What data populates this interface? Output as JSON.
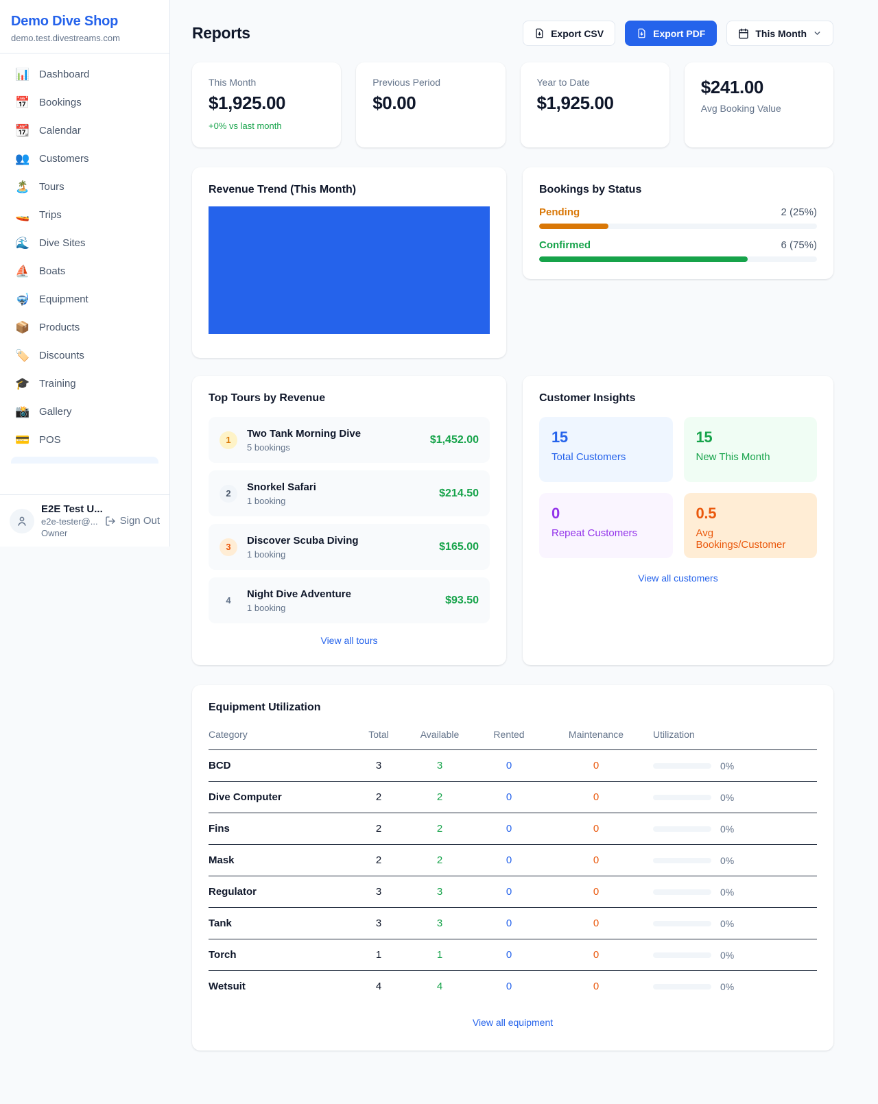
{
  "accents": {
    "primary": "#2563eb",
    "positive": "#16a34a",
    "pending": "#d97706",
    "maintenance": "#ea580c",
    "purple": "#9333ea"
  },
  "sidebar": {
    "shop_name": "Demo Dive Shop",
    "shop_domain": "demo.test.divestreams.com",
    "nav": [
      {
        "label": "Dashboard",
        "icon": "📊"
      },
      {
        "label": "Bookings",
        "icon": "📅"
      },
      {
        "label": "Calendar",
        "icon": "📆"
      },
      {
        "label": "Customers",
        "icon": "👥"
      },
      {
        "label": "Tours",
        "icon": "🏝️"
      },
      {
        "label": "Trips",
        "icon": "🚤"
      },
      {
        "label": "Dive Sites",
        "icon": "🌊"
      },
      {
        "label": "Boats",
        "icon": "⛵"
      },
      {
        "label": "Equipment",
        "icon": "🤿"
      },
      {
        "label": "Products",
        "icon": "📦"
      },
      {
        "label": "Discounts",
        "icon": "🏷️"
      },
      {
        "label": "Training",
        "icon": "🎓"
      },
      {
        "label": "Gallery",
        "icon": "📸"
      },
      {
        "label": "POS",
        "icon": "💳"
      }
    ],
    "user": {
      "name": "E2E Test U...",
      "email": "e2e-tester@...",
      "role": "Owner",
      "sign_out_label": "Sign Out"
    }
  },
  "header": {
    "title": "Reports",
    "export_csv_label": "Export CSV",
    "export_pdf_label": "Export PDF",
    "period_label": "This Month"
  },
  "stats": [
    {
      "label": "This Month",
      "value": "$1,925.00",
      "sub": "+0% vs last month"
    },
    {
      "label": "Previous Period",
      "value": "$0.00"
    },
    {
      "label": "Year to Date",
      "value": "$1,925.00"
    },
    {
      "label": "Avg Booking Value",
      "value": "$241.00"
    }
  ],
  "revenue_trend": {
    "title": "Revenue Trend (This Month)",
    "chart_color": "#2563eb"
  },
  "bookings_by_status": {
    "title": "Bookings by Status",
    "rows": [
      {
        "label": "Pending",
        "count_text": "2 (25%)",
        "count": 2,
        "percent": 25,
        "color": "#d97706"
      },
      {
        "label": "Confirmed",
        "count_text": "6 (75%)",
        "count": 6,
        "percent": 75,
        "color": "#16a34a"
      }
    ]
  },
  "top_tours": {
    "title": "Top Tours by Revenue",
    "view_all_label": "View all tours",
    "items": [
      {
        "rank": 1,
        "name": "Two Tank Morning Dive",
        "bookings": "5 bookings",
        "revenue": "$1,452.00"
      },
      {
        "rank": 2,
        "name": "Snorkel Safari",
        "bookings": "1 booking",
        "revenue": "$214.50"
      },
      {
        "rank": 3,
        "name": "Discover Scuba Diving",
        "bookings": "1 booking",
        "revenue": "$165.00"
      },
      {
        "rank": 4,
        "name": "Night Dive Adventure",
        "bookings": "1 booking",
        "revenue": "$93.50"
      }
    ]
  },
  "customer_insights": {
    "title": "Customer Insights",
    "view_all_label": "View all customers",
    "tiles": [
      {
        "value": "15",
        "label": "Total Customers",
        "color": "#2563eb",
        "bg": "#eff6ff"
      },
      {
        "value": "15",
        "label": "New This Month",
        "color": "#16a34a",
        "bg": "#f0fdf4"
      },
      {
        "value": "0",
        "label": "Repeat Customers",
        "color": "#9333ea",
        "bg": "#faf5ff"
      },
      {
        "value": "0.5",
        "label": "Avg Bookings/Customer",
        "color": "#ea580c",
        "bg": "#ffedd5"
      }
    ]
  },
  "equipment": {
    "title": "Equipment Utilization",
    "view_all_label": "View all equipment",
    "columns": [
      "Category",
      "Total",
      "Available",
      "Rented",
      "Maintenance",
      "Utilization"
    ],
    "rows": [
      {
        "category": "BCD",
        "total": "3",
        "available": "3",
        "rented": "0",
        "maintenance": "0",
        "utilization": "0%"
      },
      {
        "category": "Dive Computer",
        "total": "2",
        "available": "2",
        "rented": "0",
        "maintenance": "0",
        "utilization": "0%"
      },
      {
        "category": "Fins",
        "total": "2",
        "available": "2",
        "rented": "0",
        "maintenance": "0",
        "utilization": "0%"
      },
      {
        "category": "Mask",
        "total": "2",
        "available": "2",
        "rented": "0",
        "maintenance": "0",
        "utilization": "0%"
      },
      {
        "category": "Regulator",
        "total": "3",
        "available": "3",
        "rented": "0",
        "maintenance": "0",
        "utilization": "0%"
      },
      {
        "category": "Tank",
        "total": "3",
        "available": "3",
        "rented": "0",
        "maintenance": "0",
        "utilization": "0%"
      },
      {
        "category": "Torch",
        "total": "1",
        "available": "1",
        "rented": "0",
        "maintenance": "0",
        "utilization": "0%"
      },
      {
        "category": "Wetsuit",
        "total": "4",
        "available": "4",
        "rented": "0",
        "maintenance": "0",
        "utilization": "0%"
      }
    ]
  }
}
